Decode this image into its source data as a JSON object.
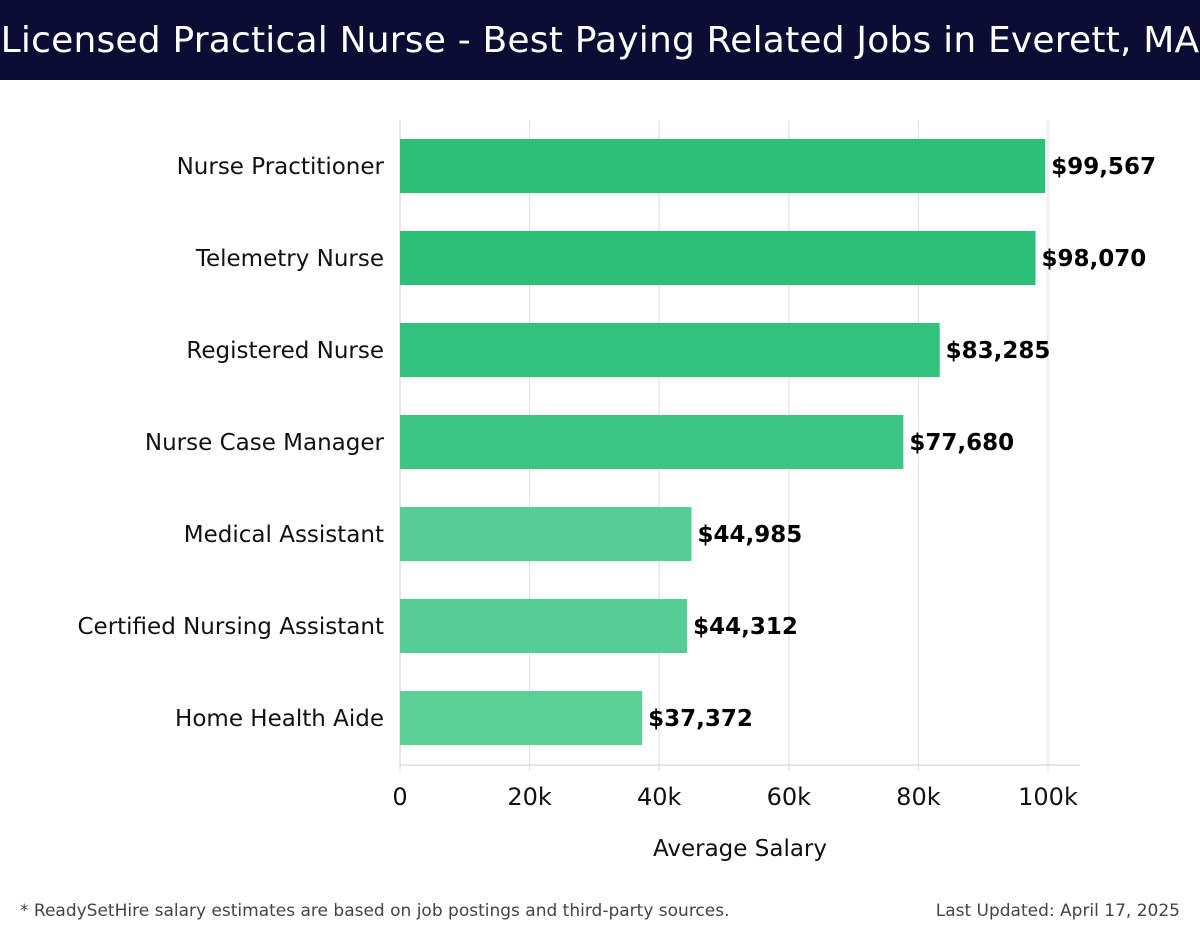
{
  "header": {
    "title": "Licensed Practical Nurse - Best Paying Related Jobs in Everett, MA"
  },
  "chart_data": {
    "type": "bar",
    "orientation": "horizontal",
    "categories": [
      "Nurse Practitioner",
      "Telemetry Nurse",
      "Registered Nurse",
      "Nurse Case Manager",
      "Medical Assistant",
      "Certified Nursing Assistant",
      "Home Health Aide"
    ],
    "values": [
      99567,
      98070,
      83285,
      77680,
      44985,
      44312,
      37372
    ],
    "value_labels": [
      "$99,567",
      "$98,070",
      "$83,285",
      "$77,680",
      "$44,985",
      "$44,312",
      "$37,372"
    ],
    "xlabel": "Average Salary",
    "xlim": [
      0,
      105000
    ],
    "xticks": [
      0,
      20000,
      40000,
      60000,
      80000,
      100000
    ],
    "xtick_labels": [
      "0",
      "20k",
      "40k",
      "60k",
      "80k",
      "100k"
    ],
    "grid": true,
    "bar_colors": [
      "#2bbf78",
      "#2bbf78",
      "#33c27d",
      "#3cc583",
      "#56cd94",
      "#56cd94",
      "#5ccf97"
    ]
  },
  "footer": {
    "note": "* ReadySetHire salary estimates are based on job postings and third-party sources.",
    "updated": "Last Updated: April 17, 2025"
  }
}
